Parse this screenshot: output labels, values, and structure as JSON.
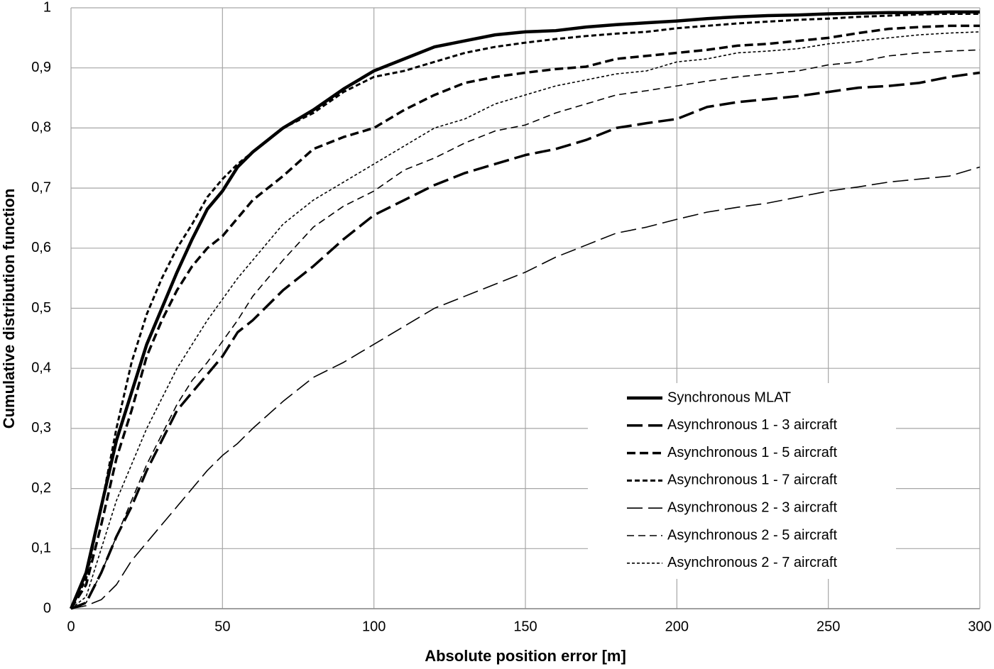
{
  "chart_data": {
    "type": "line",
    "xlabel": "Absolute position error [m]",
    "ylabel": "Cumulative distribution function",
    "x": [
      0,
      5,
      10,
      15,
      20,
      25,
      30,
      35,
      40,
      45,
      50,
      55,
      60,
      70,
      80,
      90,
      100,
      110,
      120,
      130,
      140,
      150,
      160,
      170,
      180,
      190,
      200,
      210,
      220,
      230,
      240,
      250,
      260,
      270,
      280,
      290,
      300
    ],
    "xlim": [
      0,
      300
    ],
    "xticks": [
      0,
      50,
      100,
      150,
      200,
      250,
      300
    ],
    "ylim": [
      0,
      1
    ],
    "yticks": [
      0,
      {
        "value": 0.1,
        "label": "0,1"
      },
      {
        "value": 0.2,
        "label": "0,2"
      },
      {
        "value": 0.3,
        "label": "0,3"
      },
      {
        "value": 0.4,
        "label": "0,4"
      },
      {
        "value": 0.5,
        "label": "0,5"
      },
      {
        "value": 0.6,
        "label": "0,6"
      },
      {
        "value": 0.7,
        "label": "0,7"
      },
      {
        "value": 0.8,
        "label": "0,8"
      },
      {
        "value": 0.9,
        "label": "0,9"
      },
      1
    ],
    "grid": true,
    "legend": "lower right",
    "series": [
      {
        "name": "Synchronous MLAT",
        "color": "#000000",
        "values": [
          0,
          0.06,
          0.17,
          0.28,
          0.36,
          0.44,
          0.5,
          0.56,
          0.615,
          0.665,
          0.695,
          0.735,
          0.76,
          0.8,
          0.83,
          0.865,
          0.895,
          0.915,
          0.935,
          0.945,
          0.955,
          0.96,
          0.962,
          0.968,
          0.972,
          0.975,
          0.978,
          0.982,
          0.985,
          0.987,
          0.988,
          0.99,
          0.991,
          0.992,
          0.992,
          0.993,
          0.993
        ]
      },
      {
        "name": "Asynchronous 1 - 3 aircraft",
        "color": "#000000",
        "values": [
          0,
          0.01,
          0.06,
          0.12,
          0.17,
          0.23,
          0.28,
          0.33,
          0.36,
          0.39,
          0.42,
          0.46,
          0.48,
          0.53,
          0.57,
          0.615,
          0.655,
          0.68,
          0.705,
          0.725,
          0.74,
          0.755,
          0.765,
          0.78,
          0.8,
          0.808,
          0.815,
          0.835,
          0.843,
          0.848,
          0.853,
          0.86,
          0.867,
          0.87,
          0.875,
          0.885,
          0.892
        ]
      },
      {
        "name": "Asynchronous 1 - 5 aircraft",
        "color": "#000000",
        "values": [
          0,
          0.04,
          0.14,
          0.25,
          0.33,
          0.42,
          0.48,
          0.53,
          0.57,
          0.6,
          0.62,
          0.65,
          0.68,
          0.72,
          0.765,
          0.785,
          0.8,
          0.83,
          0.855,
          0.875,
          0.885,
          0.892,
          0.898,
          0.902,
          0.915,
          0.92,
          0.925,
          0.93,
          0.937,
          0.94,
          0.945,
          0.95,
          0.958,
          0.965,
          0.968,
          0.97,
          0.97
        ]
      },
      {
        "name": "Asynchronous 1 - 7 aircraft",
        "color": "#000000",
        "values": [
          0,
          0.05,
          0.17,
          0.3,
          0.41,
          0.49,
          0.55,
          0.6,
          0.64,
          0.685,
          0.715,
          0.74,
          0.76,
          0.8,
          0.825,
          0.86,
          0.885,
          0.895,
          0.91,
          0.925,
          0.935,
          0.942,
          0.948,
          0.953,
          0.957,
          0.96,
          0.966,
          0.97,
          0.974,
          0.977,
          0.98,
          0.982,
          0.985,
          0.987,
          0.989,
          0.99,
          0.99
        ]
      },
      {
        "name": "Asynchronous 2 - 3 aircraft",
        "color": "#000000",
        "values": [
          0,
          0.005,
          0.015,
          0.04,
          0.08,
          0.11,
          0.14,
          0.17,
          0.2,
          0.23,
          0.255,
          0.275,
          0.3,
          0.345,
          0.385,
          0.41,
          0.44,
          0.47,
          0.5,
          0.52,
          0.54,
          0.56,
          0.585,
          0.605,
          0.625,
          0.635,
          0.648,
          0.66,
          0.668,
          0.675,
          0.685,
          0.695,
          0.702,
          0.71,
          0.715,
          0.72,
          0.735
        ]
      },
      {
        "name": "Asynchronous 2 - 5 aircraft",
        "color": "#000000",
        "values": [
          0,
          0.01,
          0.06,
          0.12,
          0.18,
          0.24,
          0.29,
          0.34,
          0.38,
          0.41,
          0.445,
          0.48,
          0.52,
          0.58,
          0.635,
          0.67,
          0.695,
          0.73,
          0.75,
          0.775,
          0.795,
          0.805,
          0.825,
          0.84,
          0.855,
          0.862,
          0.87,
          0.878,
          0.885,
          0.89,
          0.895,
          0.905,
          0.91,
          0.92,
          0.925,
          0.928,
          0.93
        ]
      },
      {
        "name": "Asynchronous 2 - 7 aircraft",
        "color": "#000000",
        "values": [
          0,
          0.02,
          0.1,
          0.18,
          0.24,
          0.3,
          0.35,
          0.4,
          0.44,
          0.48,
          0.515,
          0.55,
          0.58,
          0.64,
          0.68,
          0.71,
          0.74,
          0.77,
          0.8,
          0.815,
          0.84,
          0.855,
          0.87,
          0.88,
          0.89,
          0.895,
          0.91,
          0.915,
          0.925,
          0.928,
          0.932,
          0.94,
          0.945,
          0.95,
          0.955,
          0.958,
          0.96
        ]
      }
    ]
  }
}
